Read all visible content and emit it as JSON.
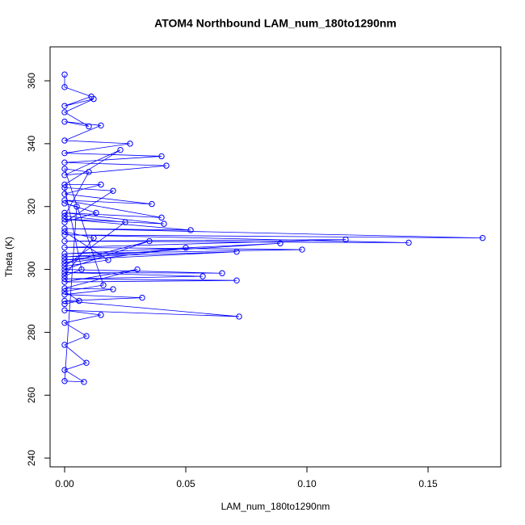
{
  "chart_data": {
    "type": "line",
    "title": "ATOM4 Northbound LAM_num_180to1290nm",
    "x_label": "LAM_num_180to1290nm",
    "y_label": "Theta (K)",
    "color": "#0000ff",
    "markers": true,
    "xlim": [
      -0.006,
      0.18
    ],
    "ylim": [
      237.2,
      370.8
    ],
    "xticks": [
      {
        "value": 0,
        "label": "0.00"
      },
      0.05,
      {
        "value": 0.1,
        "label": "0.10"
      },
      0.15
    ],
    "yticks": [
      240,
      260,
      280,
      300,
      320,
      340,
      360
    ],
    "x": [
      0,
      0,
      0.011,
      0,
      0.012,
      0,
      0.01,
      0,
      0.015,
      0,
      0.027,
      0,
      0.04,
      0,
      0.042,
      0,
      0.023,
      0,
      0.015,
      0,
      0.036,
      0,
      0.04,
      0,
      0.041,
      0,
      0.052,
      0,
      0.1725,
      0,
      0.142,
      0,
      0.116,
      0,
      0.098,
      0,
      0.089,
      0,
      0.071,
      0,
      0.05,
      0,
      0.035,
      0,
      0.065,
      0,
      0.057,
      0,
      0.071,
      0,
      0.03,
      0,
      0.02,
      0,
      0.032,
      0,
      0.072,
      0,
      0.015,
      0,
      0.009,
      0,
      0.009,
      0,
      0.008,
      0,
      0.005,
      0,
      0.013,
      0,
      0.02,
      0,
      0.007,
      0,
      0.012,
      0,
      0.018,
      0,
      0.025,
      0,
      0.01,
      0,
      0.016,
      0,
      0.006,
      0
    ],
    "values": [
      362,
      358,
      355,
      352,
      354.2,
      350,
      345.5,
      347,
      345.8,
      341,
      340,
      337,
      336,
      334,
      333,
      330,
      338,
      327,
      327,
      324,
      320.8,
      322,
      316.5,
      318,
      314.5,
      316,
      312.5,
      313,
      310,
      311,
      308.5,
      309,
      309.5,
      307,
      306.3,
      305,
      308.3,
      304,
      305.6,
      303,
      306.9,
      302,
      309,
      300,
      298.8,
      299,
      297.8,
      297,
      296.5,
      296,
      300,
      294,
      293.7,
      292,
      291,
      290,
      285,
      287,
      285.5,
      283,
      278.8,
      276,
      270.3,
      268,
      264.2,
      264.5,
      320,
      321,
      318,
      315,
      325,
      326,
      300,
      298,
      310,
      312,
      303,
      301,
      315,
      317,
      331,
      332,
      295,
      293,
      290,
      289
    ]
  }
}
